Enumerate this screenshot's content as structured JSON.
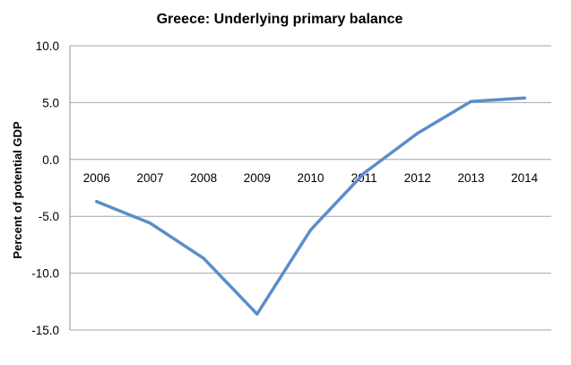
{
  "chart_data": {
    "type": "line",
    "title": "Greece: Underlying primary balance",
    "xlabel": "",
    "ylabel": "Percent of potential GDP",
    "categories": [
      "2006",
      "2007",
      "2008",
      "2009",
      "2010",
      "2011",
      "2012",
      "2013",
      "2014"
    ],
    "series": [
      {
        "name": "",
        "values": [
          -3.7,
          -5.6,
          -8.7,
          -13.6,
          -6.2,
          -1.2,
          2.3,
          5.1,
          5.4
        ],
        "color": "#5b8ec9"
      }
    ],
    "ylim": [
      -15,
      10
    ],
    "yticks": [
      10,
      5,
      0,
      -5,
      -10,
      -15
    ],
    "ytick_labels": [
      "10.0",
      "5.0",
      "0.0",
      "-5.0",
      "-10.0",
      "-15.0"
    ],
    "grid": true,
    "legend": "none"
  }
}
